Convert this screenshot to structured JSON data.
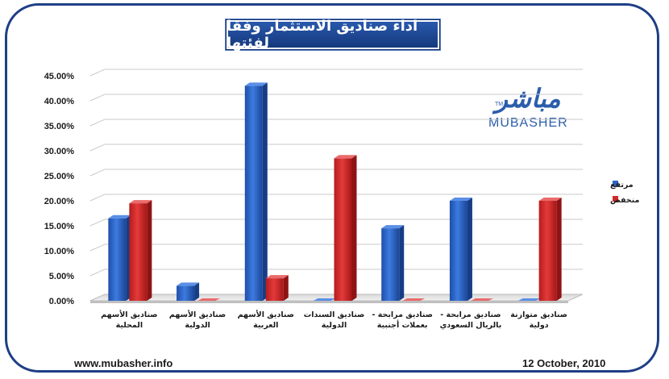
{
  "footer": {
    "website": "www.mubasher.info",
    "date": "12 October, 2010"
  },
  "logo": {
    "arabic": "مباشر",
    "english": "MUBASHER",
    "tm": "TM"
  },
  "colors": {
    "frame": "#1f3f86",
    "title_bg": "#1e4a9a",
    "series_high": "#2e63c4",
    "series_low": "#d32a2a"
  },
  "chart_data": {
    "type": "bar",
    "title": "اداء صناديق الاستثمار وفقا لفئتها",
    "categories": [
      [
        "صناديق الأسهم",
        "المحلية"
      ],
      [
        "صناديق الأسهم",
        "الدولية"
      ],
      [
        "صناديق الأسهم",
        "العربية"
      ],
      [
        "صناديق السندات",
        "الدولية"
      ],
      [
        "صناديق مرابحة -",
        "بعملات أجنبية"
      ],
      [
        "صناديق مرابحة -",
        "بالريال السعودي"
      ],
      [
        "صناديق متوازنة",
        "دولية"
      ]
    ],
    "series": [
      {
        "name": "مرتفع",
        "color": "#2e63c4",
        "values": [
          16.5,
          3.0,
          43.0,
          0.0,
          14.5,
          20.0,
          0.0
        ]
      },
      {
        "name": "منخفض",
        "color": "#d32a2a",
        "values": [
          19.5,
          0.0,
          4.5,
          28.5,
          0.0,
          0.0,
          20.0
        ]
      }
    ],
    "yticks": [
      "0.00%",
      "5.00%",
      "10.00%",
      "15.00%",
      "20.00%",
      "25.00%",
      "30.00%",
      "35.00%",
      "40.00%",
      "45.00%"
    ],
    "ylim": [
      0,
      45
    ],
    "xlabel": "",
    "ylabel": "",
    "grid": true,
    "legend_position": "right"
  }
}
